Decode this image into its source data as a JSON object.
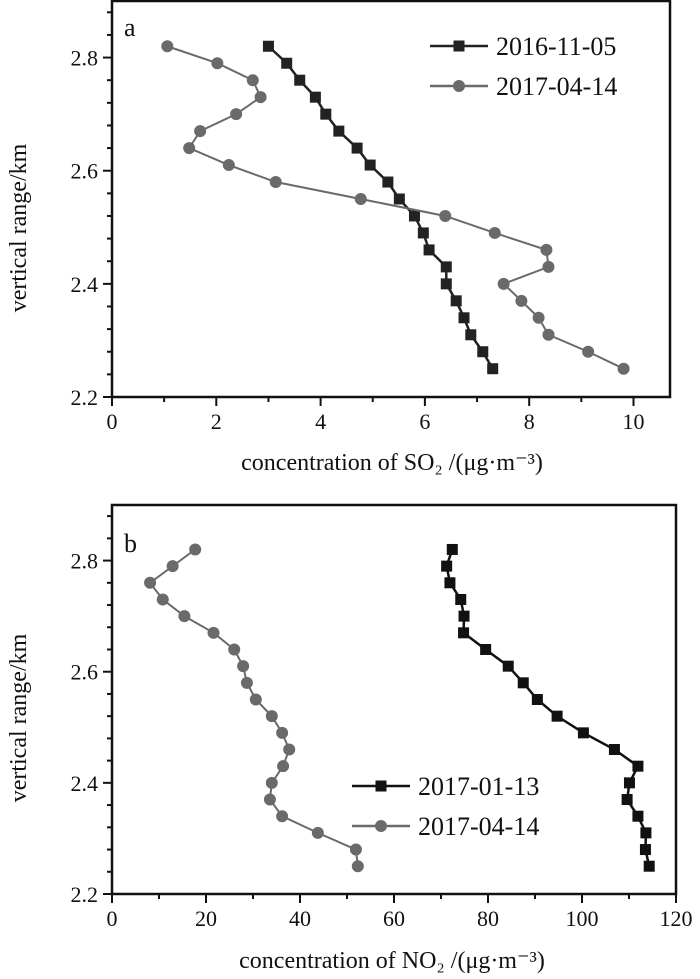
{
  "chart_data": [
    {
      "type": "line",
      "panel_label": "a",
      "xlabel": "concentration of SO₂ /(μg·m⁻³)",
      "ylabel": "vertical range/km",
      "xlim": [
        0,
        10.7
      ],
      "ylim": [
        2.2,
        2.9
      ],
      "xticks": [
        0,
        2,
        4,
        6,
        8,
        10
      ],
      "yticks": [
        2.2,
        2.4,
        2.6,
        2.8
      ],
      "legend_position": "top-right",
      "series": [
        {
          "name": "2016-11-05",
          "marker": "square",
          "color": "#222222",
          "x": [
            3.0,
            3.35,
            3.6,
            3.9,
            4.1,
            4.35,
            4.7,
            4.95,
            5.29,
            5.51,
            5.8,
            5.97,
            6.08,
            6.41,
            6.41,
            6.6,
            6.75,
            6.88,
            7.11,
            7.3
          ],
          "y": [
            2.82,
            2.79,
            2.76,
            2.73,
            2.7,
            2.67,
            2.64,
            2.61,
            2.58,
            2.55,
            2.52,
            2.49,
            2.46,
            2.43,
            2.4,
            2.37,
            2.34,
            2.31,
            2.28,
            2.25
          ]
        },
        {
          "name": "2017-04-14",
          "marker": "circle",
          "color": "#6a6a6a",
          "x": [
            1.06,
            2.02,
            2.7,
            2.85,
            2.38,
            1.69,
            1.48,
            2.24,
            3.14,
            4.77,
            6.39,
            7.34,
            8.33,
            8.37,
            7.51,
            7.85,
            8.18,
            8.37,
            9.13,
            9.81
          ],
          "y": [
            2.82,
            2.79,
            2.76,
            2.73,
            2.7,
            2.67,
            2.64,
            2.61,
            2.58,
            2.55,
            2.52,
            2.49,
            2.46,
            2.43,
            2.4,
            2.37,
            2.34,
            2.31,
            2.28,
            2.25
          ]
        }
      ]
    },
    {
      "type": "line",
      "panel_label": "b",
      "xlabel": "concentration of NO₂ /(μg·m⁻³)",
      "ylabel": "vertical range/km",
      "xlim": [
        0,
        120
      ],
      "ylim": [
        2.2,
        2.9
      ],
      "xticks": [
        0,
        20,
        40,
        60,
        80,
        100,
        120
      ],
      "yticks": [
        2.2,
        2.4,
        2.6,
        2.8
      ],
      "legend_position": "center-right",
      "series": [
        {
          "name": "2017-01-13",
          "marker": "square",
          "color": "#111111",
          "x": [
            72.4,
            71.2,
            71.9,
            74.2,
            74.9,
            74.8,
            79.5,
            84.3,
            87.5,
            90.5,
            94.7,
            100.3,
            106.9,
            111.9,
            110.1,
            109.6,
            111.9,
            113.6,
            113.5,
            114.3
          ],
          "y": [
            2.82,
            2.79,
            2.76,
            2.73,
            2.7,
            2.67,
            2.64,
            2.61,
            2.58,
            2.55,
            2.52,
            2.49,
            2.46,
            2.43,
            2.4,
            2.37,
            2.34,
            2.31,
            2.28,
            2.25
          ]
        },
        {
          "name": "2017-04-14",
          "marker": "circle",
          "color": "#6a6a6a",
          "x": [
            17.7,
            12.9,
            8.1,
            10.8,
            15.4,
            21.6,
            26.0,
            27.9,
            28.7,
            30.6,
            34.0,
            36.2,
            37.7,
            36.4,
            34.0,
            33.6,
            36.2,
            43.8,
            51.9,
            52.3
          ],
          "y": [
            2.82,
            2.79,
            2.76,
            2.73,
            2.7,
            2.67,
            2.64,
            2.61,
            2.58,
            2.55,
            2.52,
            2.49,
            2.46,
            2.43,
            2.4,
            2.37,
            2.34,
            2.31,
            2.28,
            2.25
          ]
        }
      ]
    }
  ]
}
